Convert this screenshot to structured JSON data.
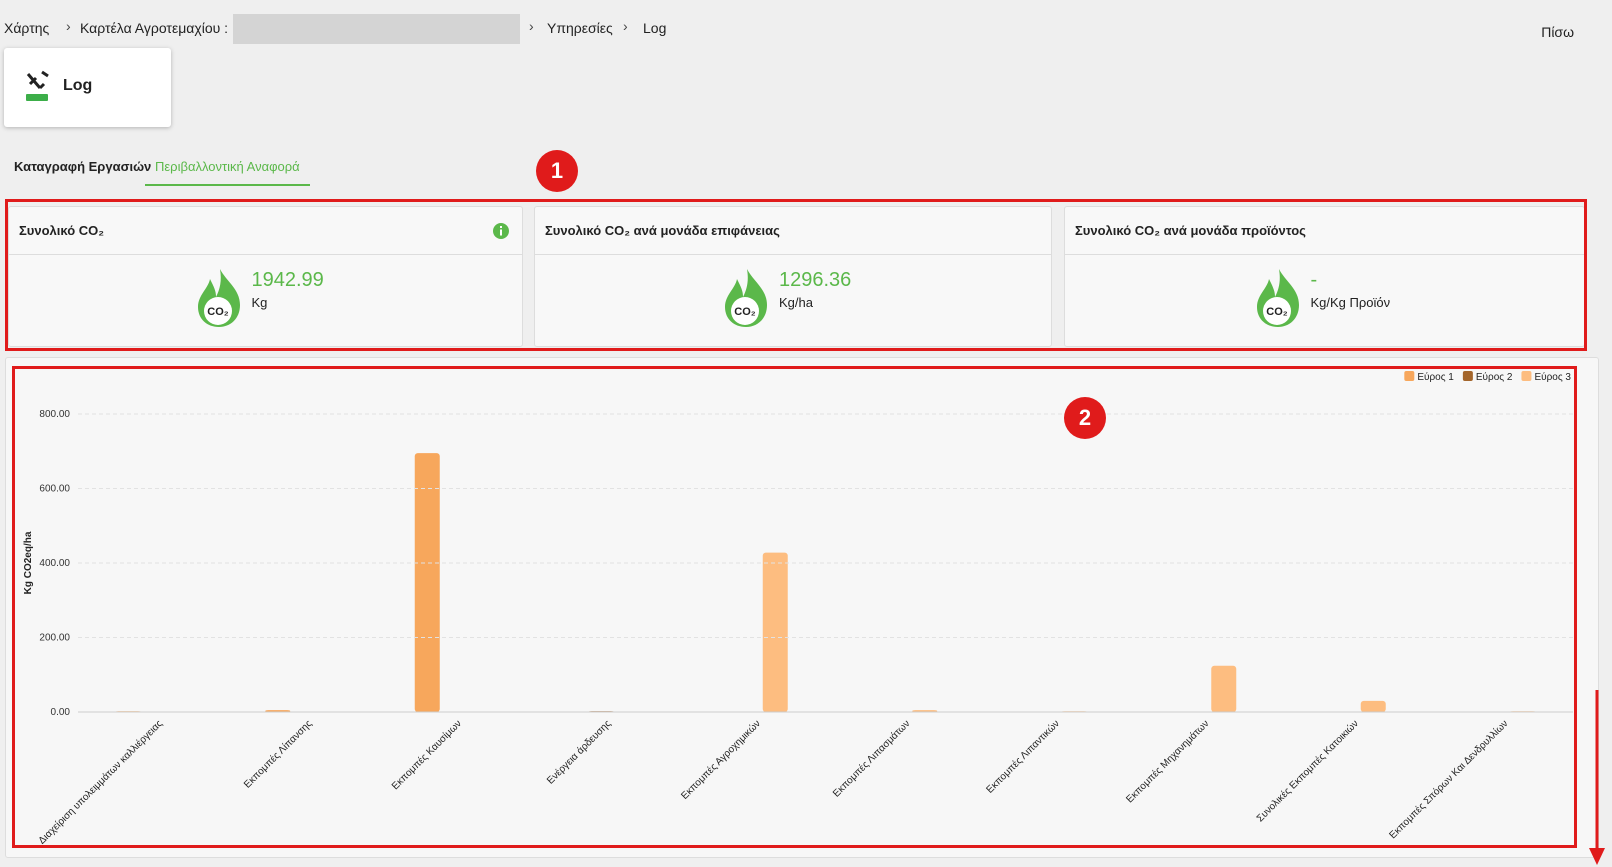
{
  "breadcrumb": [
    "Χάρτης",
    "Καρτέλα Αγροτεμαχίου :",
    "Υπηρεσίες",
    "Log"
  ],
  "back": "Πίσω",
  "header_card": "Log",
  "tabs": [
    "Καταγραφή Εργασιών",
    "Περιβαλλοντική Αναφορά"
  ],
  "annotations": [
    "1",
    "2"
  ],
  "kpi_cards": [
    {
      "title": "Συνολικό CO₂",
      "icon_text": "CO₂",
      "value": "1942.99",
      "unit": "Kg"
    },
    {
      "title": "Συνολικό CO₂ ανά μονάδα επιφάνειας",
      "icon_text": "CO₂",
      "value": "1296.36",
      "unit": "Kg/ha"
    },
    {
      "title": "Συνολικό CO₂ ανά μονάδα προϊόντος",
      "icon_text": "CO₂",
      "value": "-",
      "unit": "Kg/Kg Προϊόν"
    }
  ],
  "chart_data": {
    "type": "bar",
    "y_label": "Kg CO2eq/ha",
    "categories": [
      "Διαχείριση υπολειμμάτων καλλιέργειας",
      "Εκπομπές Λίπανσης",
      "Εκπομπές Καυσίμων",
      "Ενέργεια άρδευσης",
      "Εκπομπές Αγροχημικών",
      "Εκπομπές Λιπασμάτων",
      "Εκπομπές Λιπαντικών",
      "Εκπομπές Μηχανημάτων",
      "Συνολικές Εκπομπές Κατοικιών",
      "Εκπομπές Σπόρων Και Δενδρυλλίων"
    ],
    "series": [
      {
        "name": "Εύρος 1",
        "color": "#f7a75c",
        "values": [
          2,
          5,
          695,
          null,
          null,
          null,
          null,
          null,
          null,
          null
        ]
      },
      {
        "name": "Εύρος 2",
        "color": "#a3652b",
        "values": [
          null,
          null,
          null,
          2,
          null,
          null,
          null,
          null,
          null,
          null
        ]
      },
      {
        "name": "Εύρος 3",
        "color": "#fdbd80",
        "values": [
          null,
          null,
          null,
          null,
          428,
          5,
          2,
          124,
          30,
          2
        ]
      }
    ],
    "ylim": [
      0,
      800
    ],
    "yticks": [
      {
        "value": 0,
        "label": "0.00"
      },
      {
        "value": 200,
        "label": "200.00"
      },
      {
        "value": 400,
        "label": "400.00"
      },
      {
        "value": 600,
        "label": "600.00"
      },
      {
        "value": 800,
        "label": "800.00"
      }
    ],
    "grid": true,
    "legend": "top-right"
  }
}
